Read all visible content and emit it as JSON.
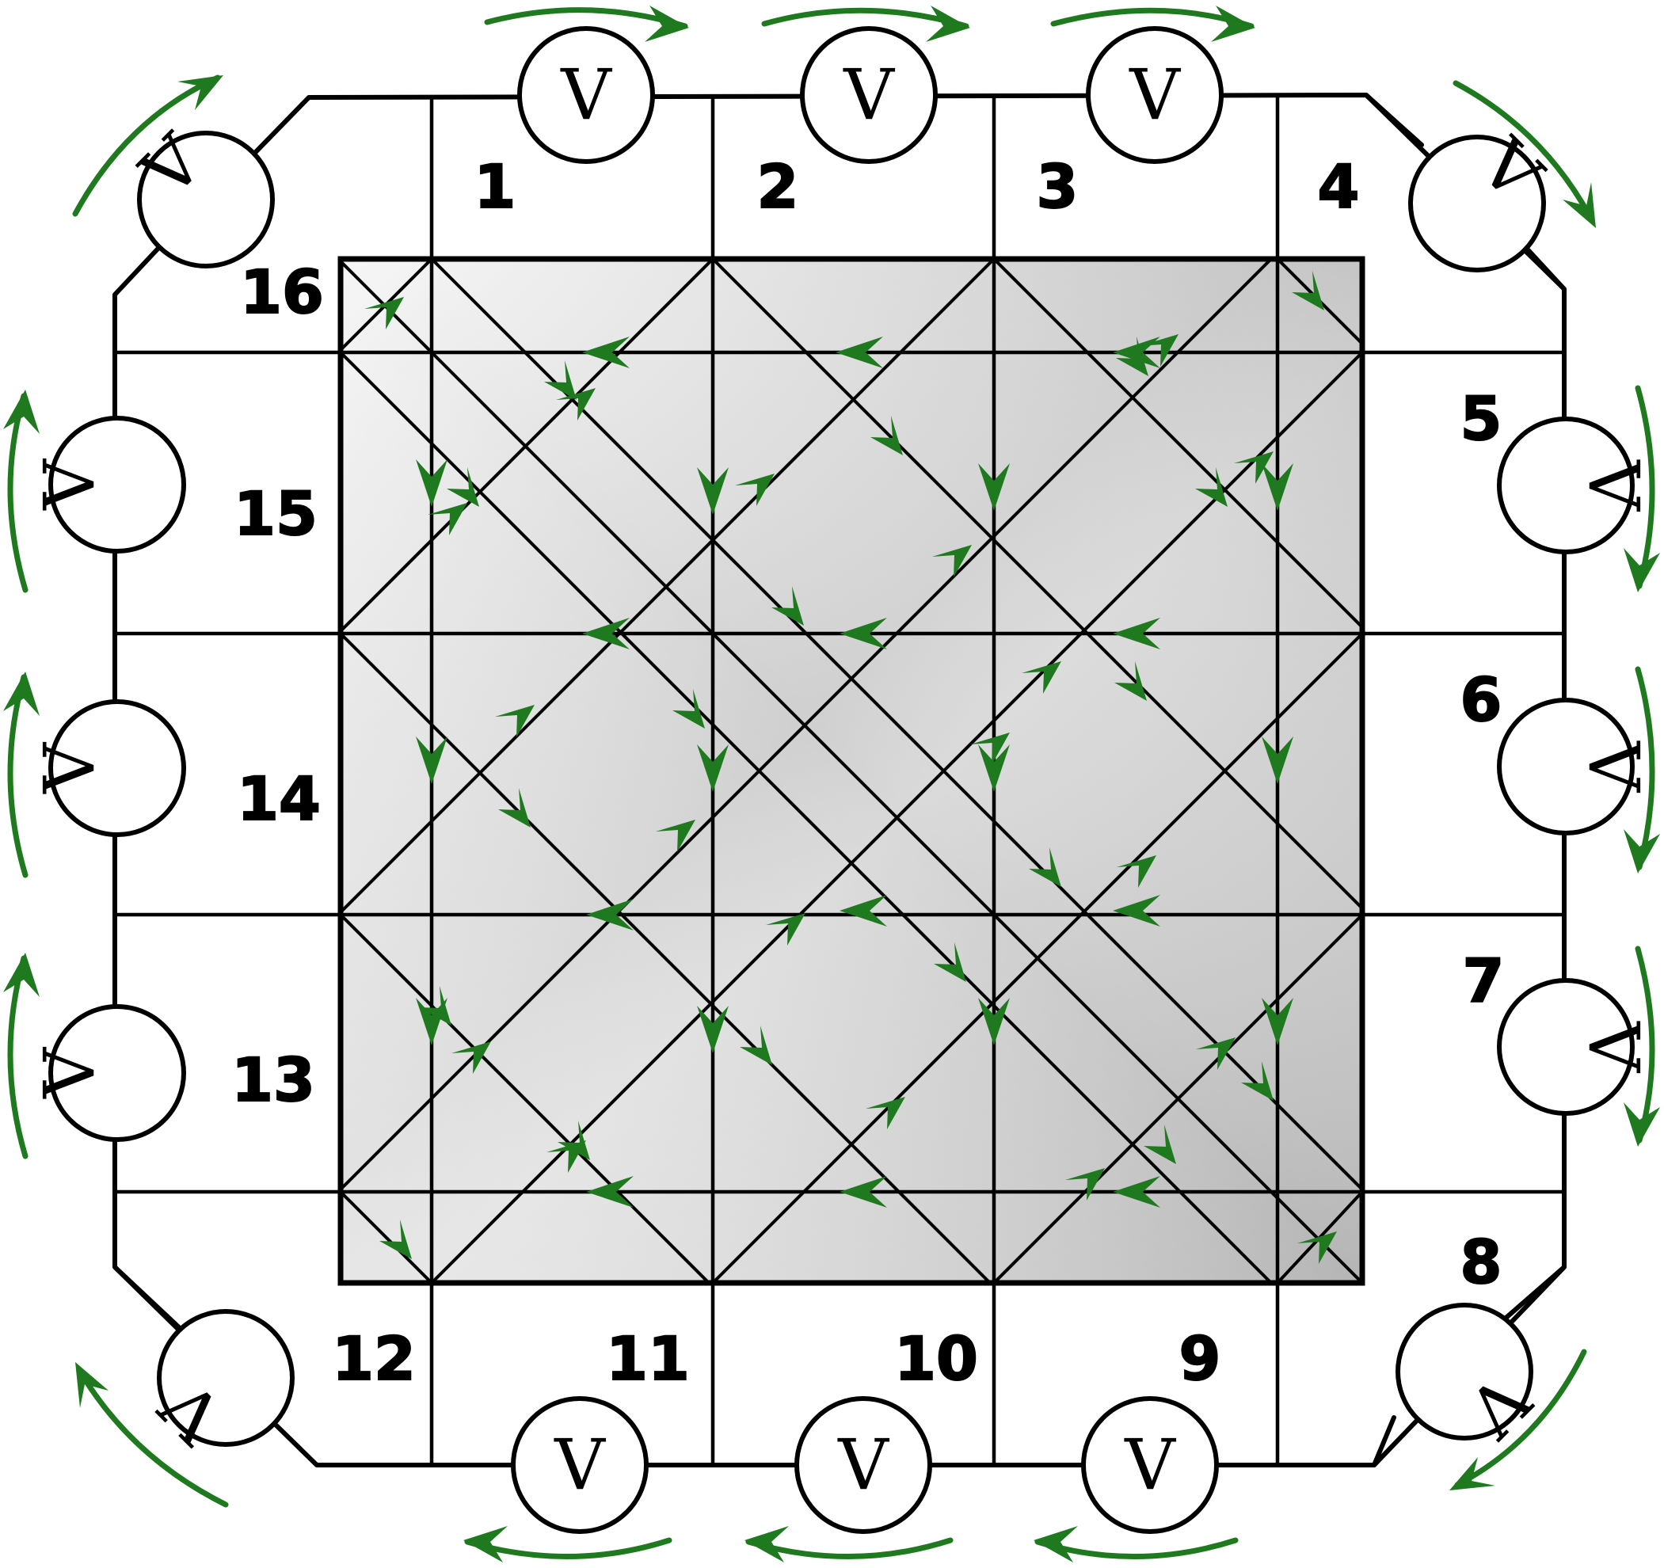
{
  "figure": {
    "description_labels": {
      "meter": "V",
      "contacts": [
        "1",
        "2",
        "3",
        "4",
        "5",
        "6",
        "7",
        "8",
        "9",
        "10",
        "11",
        "12",
        "13",
        "14",
        "15",
        "16"
      ]
    },
    "colors": {
      "arrow": "#1f7a1f",
      "lines": "#000000",
      "sample_light": "#f4f4f4",
      "sample_dark": "#b8b8b8",
      "background": "#ffffff"
    },
    "meter_count": 16,
    "contact_count": 16
  }
}
